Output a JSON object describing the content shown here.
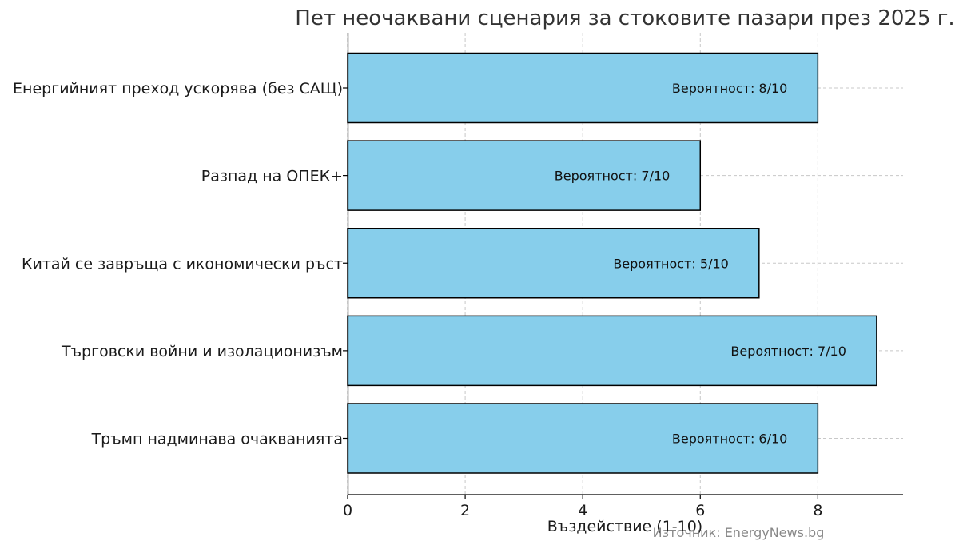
{
  "chart_data": {
    "type": "bar",
    "orientation": "horizontal",
    "title": "Пет неочаквани сценария за стоковите пазари през 2025 г.",
    "xlabel": "Въздействие (1-10)",
    "ylabel": "",
    "categories": [
      "Енергийният преход ускорява (без САЩ)",
      "Разпад на ОПЕК+",
      "Китай се завръща с икономически ръст",
      "Търговски войни и изолационизъм",
      "Тръмп надминава очакванията"
    ],
    "values": [
      8,
      6,
      7,
      9,
      8
    ],
    "labels": [
      "Вероятност: 8/10",
      "Вероятност: 7/10",
      "Вероятност: 5/10",
      "Вероятност: 7/10",
      "Вероятност: 6/10"
    ],
    "xlim": [
      0,
      9.45
    ],
    "xticks": [
      0,
      2,
      4,
      6,
      8
    ],
    "xtick_labels": [
      "0",
      "2",
      "4",
      "6",
      "8"
    ],
    "grid": true,
    "bar_color": "#87ceeb",
    "bar_edge_color": "#000000",
    "source": "Източник: EnergyNews.bg"
  }
}
